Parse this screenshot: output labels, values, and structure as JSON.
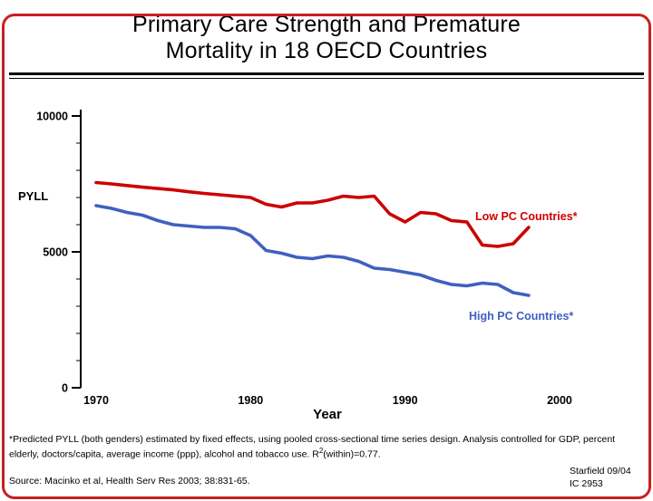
{
  "slide": {
    "title_line1": "Primary Care Strength and Premature",
    "title_line2": "Mortality in 18 OECD Countries"
  },
  "chart_data": {
    "type": "line",
    "title": "Primary Care Strength and Premature Mortality in 18 OECD Countries",
    "xlabel": "Year",
    "ylabel": "PYLL",
    "ylim": [
      0,
      10000
    ],
    "yticks_major": [
      0,
      5000,
      10000
    ],
    "ytick_minor_step": 1000,
    "xticks": [
      1970,
      1980,
      1990,
      2000
    ],
    "grid": false,
    "legend_position": "labels-on-chart-right",
    "x": [
      1970,
      1971,
      1972,
      1973,
      1974,
      1975,
      1976,
      1977,
      1978,
      1979,
      1980,
      1981,
      1982,
      1983,
      1984,
      1985,
      1986,
      1987,
      1988,
      1989,
      1990,
      1991,
      1992,
      1993,
      1994,
      1995,
      1996,
      1997,
      1998
    ],
    "series": [
      {
        "name": "Low PC Countries*",
        "color": "#cc0000",
        "values": [
          7550,
          7500,
          7440,
          7380,
          7330,
          7280,
          7210,
          7150,
          7100,
          7050,
          7000,
          6750,
          6650,
          6800,
          6800,
          6900,
          7050,
          7000,
          7050,
          6400,
          6100,
          6450,
          6400,
          6150,
          6100,
          5250,
          5200,
          5300,
          5900
        ]
      },
      {
        "name": "High PC Countries*",
        "color": "#4060c0",
        "values": [
          6700,
          6600,
          6450,
          6350,
          6150,
          6000,
          5950,
          5900,
          5900,
          5850,
          5600,
          5050,
          4950,
          4800,
          4750,
          4850,
          4800,
          4650,
          4400,
          4350,
          4250,
          4150,
          3950,
          3800,
          3750,
          3850,
          3800,
          3500,
          3400
        ]
      }
    ]
  },
  "footnote": {
    "part1": "*Predicted PYLL (both genders) estimated by fixed effects, using pooled cross-sectional time series design.  Analysis controlled for GDP, percent elderly, doctors/capita, average income (ppp), alcohol and tobacco use.  R",
    "sup": "2",
    "part2": "(within)=0.77."
  },
  "source": "Source: Macinko et al, Health Serv Res 2003; 38:831-65.",
  "credit_line1": "Starfield 09/04",
  "credit_line2": "IC 2953"
}
